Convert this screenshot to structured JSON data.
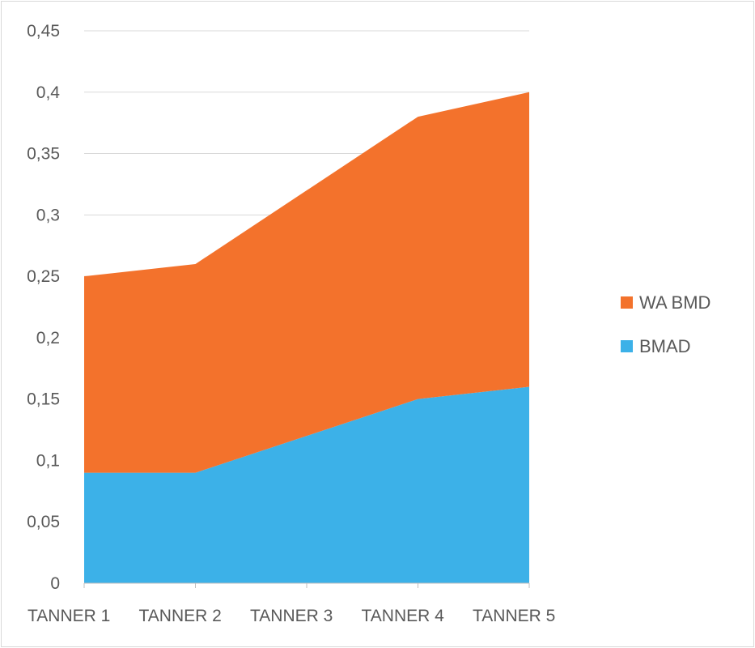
{
  "chart_data": {
    "type": "area",
    "stacked": true,
    "categories": [
      "TANNER 1",
      "TANNER 2",
      "TANNER 3",
      "TANNER 4",
      "TANNER 5"
    ],
    "series": [
      {
        "name": "BMAD",
        "values": [
          0.09,
          0.09,
          0.12,
          0.15,
          0.16
        ],
        "color": "#3cb1e8"
      },
      {
        "name": "WA BMD",
        "values": [
          0.16,
          0.17,
          0.2,
          0.23,
          0.24
        ],
        "color": "#f3722c"
      }
    ],
    "y_ticks": [
      "0",
      "0,05",
      "0,1",
      "0,15",
      "0,2",
      "0,25",
      "0,3",
      "0,35",
      "0,4",
      "0,45"
    ],
    "y_tick_values": [
      0,
      0.05,
      0.1,
      0.15,
      0.2,
      0.25,
      0.3,
      0.35,
      0.4,
      0.45
    ],
    "ylim": [
      0,
      0.45
    ],
    "grid": true,
    "legend_position": "right",
    "legend_order": [
      "WA BMD",
      "BMAD"
    ],
    "gridline_color": "#d9d9d9",
    "axis_color": "#bfbfbf"
  }
}
